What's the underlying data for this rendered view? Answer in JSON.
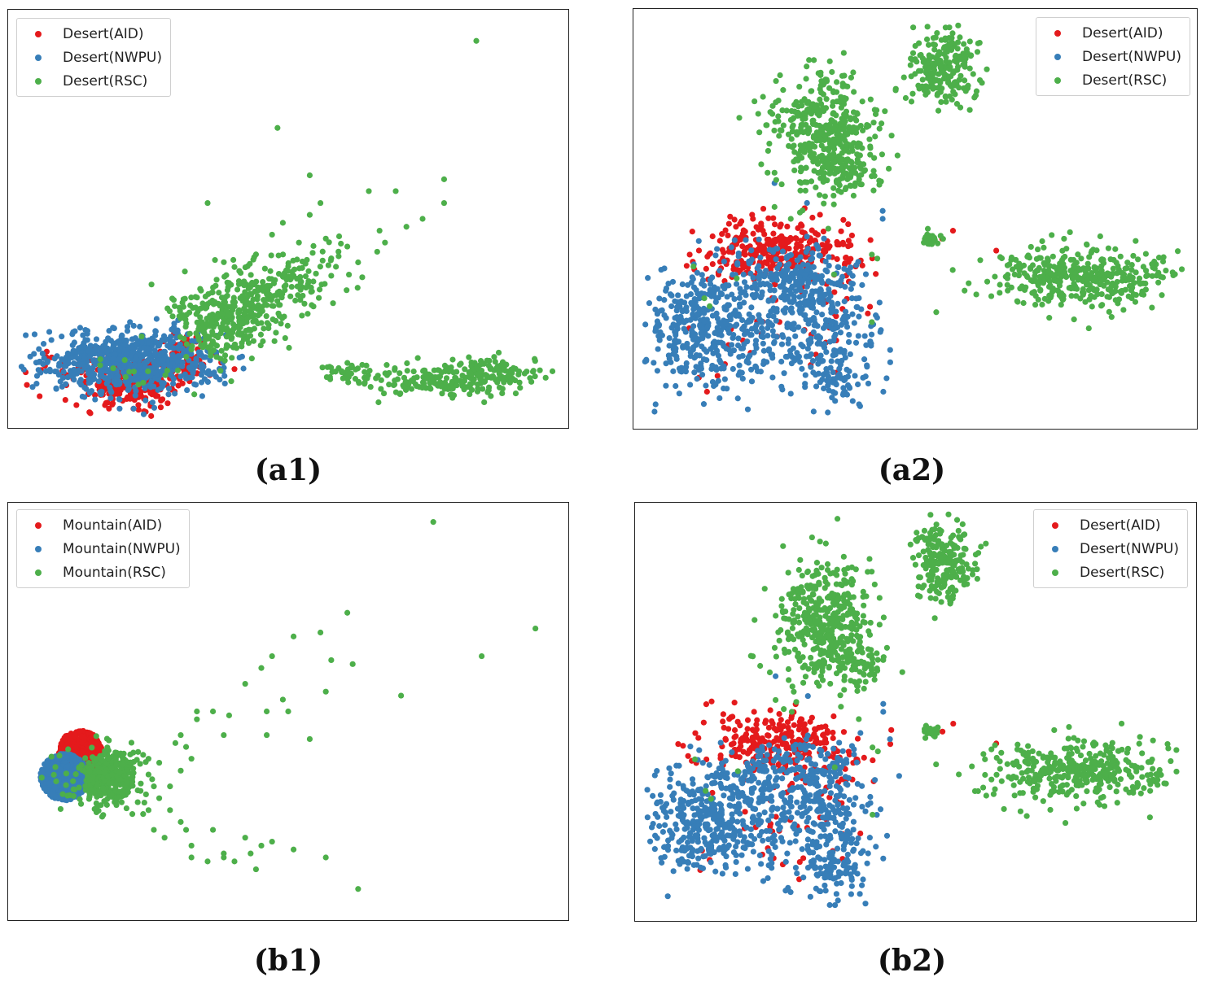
{
  "colors": {
    "aid": "#e41a1c",
    "nwpu": "#377eb8",
    "rsc": "#4daf4a"
  },
  "chart_data": [
    {
      "id": "a1",
      "type": "scatter",
      "caption": "(a1)",
      "legend": [
        "Desert(AID)",
        "Desert(NWPU)",
        "Desert(RSC)"
      ],
      "legend_position": "top-left",
      "grid": false,
      "xlim": [
        0,
        100
      ],
      "ylim": [
        0,
        100
      ],
      "series": [
        {
          "name": "Desert(AID)",
          "color": "#e41a1c",
          "clusters": [
            {
              "cx": 21,
              "cy": 8,
              "sx": 4,
              "sy": 2.5,
              "n": 260
            },
            {
              "cx": 31,
              "cy": 15,
              "sx": 3,
              "sy": 3,
              "n": 80
            },
            {
              "cx": 13,
              "cy": 12,
              "sx": 5,
              "sy": 3,
              "n": 60
            }
          ],
          "points": [
            [
              5,
              15
            ],
            [
              40,
              12
            ]
          ]
        },
        {
          "name": "Desert(NWPU)",
          "color": "#377eb8",
          "clusters": [
            {
              "cx": 21,
              "cy": 14,
              "sx": 8,
              "sy": 4,
              "n": 700
            }
          ]
        },
        {
          "name": "Desert(RSC)",
          "color": "#4daf4a",
          "clusters": [
            {
              "cx": 38,
              "cy": 25,
              "sx": 5,
              "sy": 5,
              "n": 280
            },
            {
              "cx": 46,
              "cy": 31,
              "sx": 5,
              "sy": 5,
              "n": 120
            },
            {
              "cx": 54,
              "cy": 36,
              "sx": 4,
              "sy": 4,
              "n": 60
            },
            {
              "cx": 62,
              "cy": 11,
              "sx": 3.5,
              "sy": 1.1,
              "n": 45
            },
            {
              "cx": 78,
              "cy": 9,
              "sx": 6,
              "sy": 2,
              "n": 150
            },
            {
              "cx": 88,
              "cy": 11,
              "sx": 4,
              "sy": 2,
              "n": 100
            },
            {
              "cx": 20,
              "cy": 12,
              "sx": 5,
              "sy": 3,
              "n": 15
            }
          ],
          "points": [
            [
              85,
              95
            ],
            [
              48,
              73
            ],
            [
              54,
              61
            ],
            [
              35,
              54
            ],
            [
              79,
              60
            ],
            [
              65,
              57
            ],
            [
              70,
              57
            ],
            [
              79,
              54
            ],
            [
              49,
              49
            ],
            [
              54,
              51
            ],
            [
              56,
              54
            ],
            [
              57,
              45
            ],
            [
              67,
              47
            ],
            [
              68,
              44
            ],
            [
              72,
              48
            ],
            [
              75,
              50
            ],
            [
              61,
              43
            ],
            [
              58,
              40
            ],
            [
              63,
              39
            ],
            [
              47,
              46
            ],
            [
              52,
              44
            ],
            [
              44,
              41
            ],
            [
              50,
              38
            ]
          ]
        }
      ]
    },
    {
      "id": "a2",
      "type": "scatter",
      "caption": "(a2)",
      "legend": [
        "Desert(AID)",
        "Desert(NWPU)",
        "Desert(RSC)"
      ],
      "legend_position": "top-right",
      "grid": false,
      "xlim": [
        0,
        100
      ],
      "ylim": [
        0,
        100
      ],
      "series": [
        {
          "name": "Desert(AID)",
          "color": "#e41a1c",
          "clusters": [
            {
              "cx": 25,
              "cy": 42,
              "sx": 7,
              "sy": 4,
              "n": 260
            },
            {
              "cx": 33,
              "cy": 30,
              "sx": 4,
              "sy": 10,
              "n": 35
            },
            {
              "cx": 20,
              "cy": 25,
              "sx": 7,
              "sy": 10,
              "n": 25
            }
          ],
          "points": [
            [
              20,
              50
            ],
            [
              25,
              48
            ],
            [
              32,
              46
            ],
            [
              39,
              38
            ],
            [
              55,
              45
            ],
            [
              57,
              47
            ],
            [
              53,
              45
            ],
            [
              65,
              42
            ],
            [
              10,
              10
            ]
          ]
        },
        {
          "name": "Desert(NWPU)",
          "color": "#377eb8",
          "clusters": [
            {
              "cx": 10,
              "cy": 22,
              "sx": 5,
              "sy": 7,
              "n": 320
            },
            {
              "cx": 22,
              "cy": 25,
              "sx": 6,
              "sy": 8,
              "n": 200
            },
            {
              "cx": 33,
              "cy": 23,
              "sx": 5,
              "sy": 9,
              "n": 230
            },
            {
              "cx": 27,
              "cy": 36,
              "sx": 6,
              "sy": 3,
              "n": 110
            },
            {
              "cx": 36,
              "cy": 10,
              "sx": 3,
              "sy": 3,
              "n": 60
            }
          ],
          "points": [
            [
              24,
              59
            ],
            [
              30,
              54
            ],
            [
              44,
              50
            ],
            [
              44,
              52
            ]
          ]
        },
        {
          "name": "Desert(RSC)",
          "color": "#4daf4a",
          "clusters": [
            {
              "cx": 33,
              "cy": 72,
              "sx": 5,
              "sy": 8,
              "n": 400
            },
            {
              "cx": 38,
              "cy": 62,
              "sx": 3,
              "sy": 3,
              "n": 70
            },
            {
              "cx": 55,
              "cy": 88,
              "sx": 3,
              "sy": 5,
              "n": 220
            },
            {
              "cx": 80,
              "cy": 35,
              "sx": 9,
              "sy": 4,
              "n": 380
            },
            {
              "cx": 53,
              "cy": 45,
              "sx": 0.8,
              "sy": 0.8,
              "n": 25
            }
          ],
          "points": [
            [
              9,
              38
            ],
            [
              17,
              35
            ],
            [
              11,
              30
            ],
            [
              42,
              41
            ],
            [
              43,
              40
            ],
            [
              27,
              50
            ],
            [
              24,
              53
            ],
            [
              35,
              36
            ],
            [
              12,
              28
            ],
            [
              42,
              24
            ]
          ]
        }
      ]
    },
    {
      "id": "b1",
      "type": "scatter",
      "caption": "(b1)",
      "legend": [
        "Mountain(AID)",
        "Mountain(NWPU)",
        "Mountain(RSC)"
      ],
      "legend_position": "top-left",
      "grid": false,
      "xlim": [
        0,
        100
      ],
      "ylim": [
        0,
        100
      ],
      "series": [
        {
          "name": "Mountain(AID)",
          "color": "#e41a1c",
          "clusters": [
            {
              "cx": 11.3,
              "cy": 39.8,
              "sx": 2.1,
              "sy": 2.6,
              "n": 420,
              "disc": true,
              "r": 4
            }
          ]
        },
        {
          "name": "Mountain(NWPU)",
          "color": "#377eb8",
          "clusters": [
            {
              "cx": 8.3,
              "cy": 33.4,
              "sx": 2.4,
              "sy": 3,
              "n": 650,
              "disc": true,
              "r": 4.4
            }
          ]
        },
        {
          "name": "Mountain(RSC)",
          "color": "#4daf4a",
          "clusters": [
            {
              "cx": 16.5,
              "cy": 33.5,
              "sx": 3,
              "sy": 3.5,
              "n": 380
            },
            {
              "cx": 8,
              "cy": 33,
              "sx": 2.5,
              "sy": 4,
              "n": 10
            }
          ],
          "points": [
            [
              77,
              98
            ],
            [
              96,
              71
            ],
            [
              61,
              75
            ],
            [
              86,
              64
            ],
            [
              56,
              70
            ],
            [
              51,
              69
            ],
            [
              47,
              64
            ],
            [
              58,
              63
            ],
            [
              62,
              62
            ],
            [
              45,
              61
            ],
            [
              42,
              57
            ],
            [
              57,
              55
            ],
            [
              71,
              54
            ],
            [
              49,
              53
            ],
            [
              46,
              50
            ],
            [
              50,
              50
            ],
            [
              33,
              50
            ],
            [
              36,
              50
            ],
            [
              39,
              49
            ],
            [
              46,
              44
            ],
            [
              54,
              43
            ],
            [
              38,
              44
            ],
            [
              30,
              44
            ],
            [
              33,
              48
            ],
            [
              31,
              41
            ],
            [
              29,
              42
            ],
            [
              32,
              38
            ],
            [
              23,
              39
            ],
            [
              24,
              38
            ],
            [
              26,
              37
            ],
            [
              30,
              35
            ],
            [
              24,
              34
            ],
            [
              28,
              31
            ],
            [
              25,
              31
            ],
            [
              26,
              28
            ],
            [
              22,
              27
            ],
            [
              24,
              25
            ],
            [
              28,
              25
            ],
            [
              30,
              22
            ],
            [
              36,
              20
            ],
            [
              32,
              16
            ],
            [
              38,
              14
            ],
            [
              35,
              12
            ],
            [
              42,
              18
            ],
            [
              45,
              16
            ],
            [
              47,
              17
            ],
            [
              51,
              15
            ],
            [
              57,
              13
            ],
            [
              63,
              5
            ],
            [
              44,
              10
            ],
            [
              43,
              14
            ],
            [
              40,
              12
            ],
            [
              32,
              13
            ],
            [
              38,
              13
            ],
            [
              20,
              32
            ],
            [
              22,
              30
            ],
            [
              21,
              24
            ],
            [
              23,
              24
            ],
            [
              25,
              20
            ],
            [
              27,
              18
            ],
            [
              31,
              20
            ]
          ]
        }
      ]
    },
    {
      "id": "b2",
      "type": "scatter",
      "caption": "(b2)",
      "legend": [
        "Desert(AID)",
        "Desert(NWPU)",
        "Desert(RSC)"
      ],
      "legend_position": "top-right",
      "grid": false,
      "xlim": [
        0,
        100
      ],
      "ylim": [
        0,
        100
      ],
      "series": [
        {
          "name": "Desert(AID)",
          "color": "#e41a1c",
          "clusters": [
            {
              "cx": 25,
              "cy": 42,
              "sx": 7,
              "sy": 4,
              "n": 260
            },
            {
              "cx": 33,
              "cy": 30,
              "sx": 4,
              "sy": 10,
              "n": 35
            },
            {
              "cx": 20,
              "cy": 25,
              "sx": 7,
              "sy": 10,
              "n": 25
            }
          ],
          "points": [
            [
              20,
              50
            ],
            [
              25,
              48
            ],
            [
              32,
              46
            ],
            [
              39,
              38
            ],
            [
              55,
              45
            ],
            [
              57,
              47
            ],
            [
              53,
              45
            ],
            [
              65,
              42
            ],
            [
              10,
              10
            ]
          ]
        },
        {
          "name": "Desert(NWPU)",
          "color": "#377eb8",
          "clusters": [
            {
              "cx": 10,
              "cy": 22,
              "sx": 5,
              "sy": 7,
              "n": 320
            },
            {
              "cx": 22,
              "cy": 25,
              "sx": 6,
              "sy": 8,
              "n": 200
            },
            {
              "cx": 33,
              "cy": 23,
              "sx": 5,
              "sy": 9,
              "n": 230
            },
            {
              "cx": 27,
              "cy": 36,
              "sx": 6,
              "sy": 3,
              "n": 110
            },
            {
              "cx": 36,
              "cy": 10,
              "sx": 3,
              "sy": 3,
              "n": 60
            }
          ],
          "points": [
            [
              24,
              59
            ],
            [
              30,
              54
            ],
            [
              44,
              50
            ],
            [
              44,
              52
            ]
          ]
        },
        {
          "name": "Desert(RSC)",
          "color": "#4daf4a",
          "clusters": [
            {
              "cx": 33,
              "cy": 72,
              "sx": 5,
              "sy": 8,
              "n": 400
            },
            {
              "cx": 38,
              "cy": 62,
              "sx": 3,
              "sy": 3,
              "n": 70
            },
            {
              "cx": 55,
              "cy": 88,
              "sx": 3,
              "sy": 5,
              "n": 220
            },
            {
              "cx": 80,
              "cy": 35,
              "sx": 9,
              "sy": 4,
              "n": 380
            },
            {
              "cx": 53,
              "cy": 45,
              "sx": 0.8,
              "sy": 0.8,
              "n": 25
            }
          ],
          "points": [
            [
              9,
              38
            ],
            [
              17,
              35
            ],
            [
              11,
              30
            ],
            [
              42,
              41
            ],
            [
              43,
              40
            ],
            [
              27,
              50
            ],
            [
              24,
              53
            ],
            [
              35,
              36
            ],
            [
              12,
              28
            ],
            [
              42,
              24
            ]
          ]
        }
      ]
    }
  ]
}
